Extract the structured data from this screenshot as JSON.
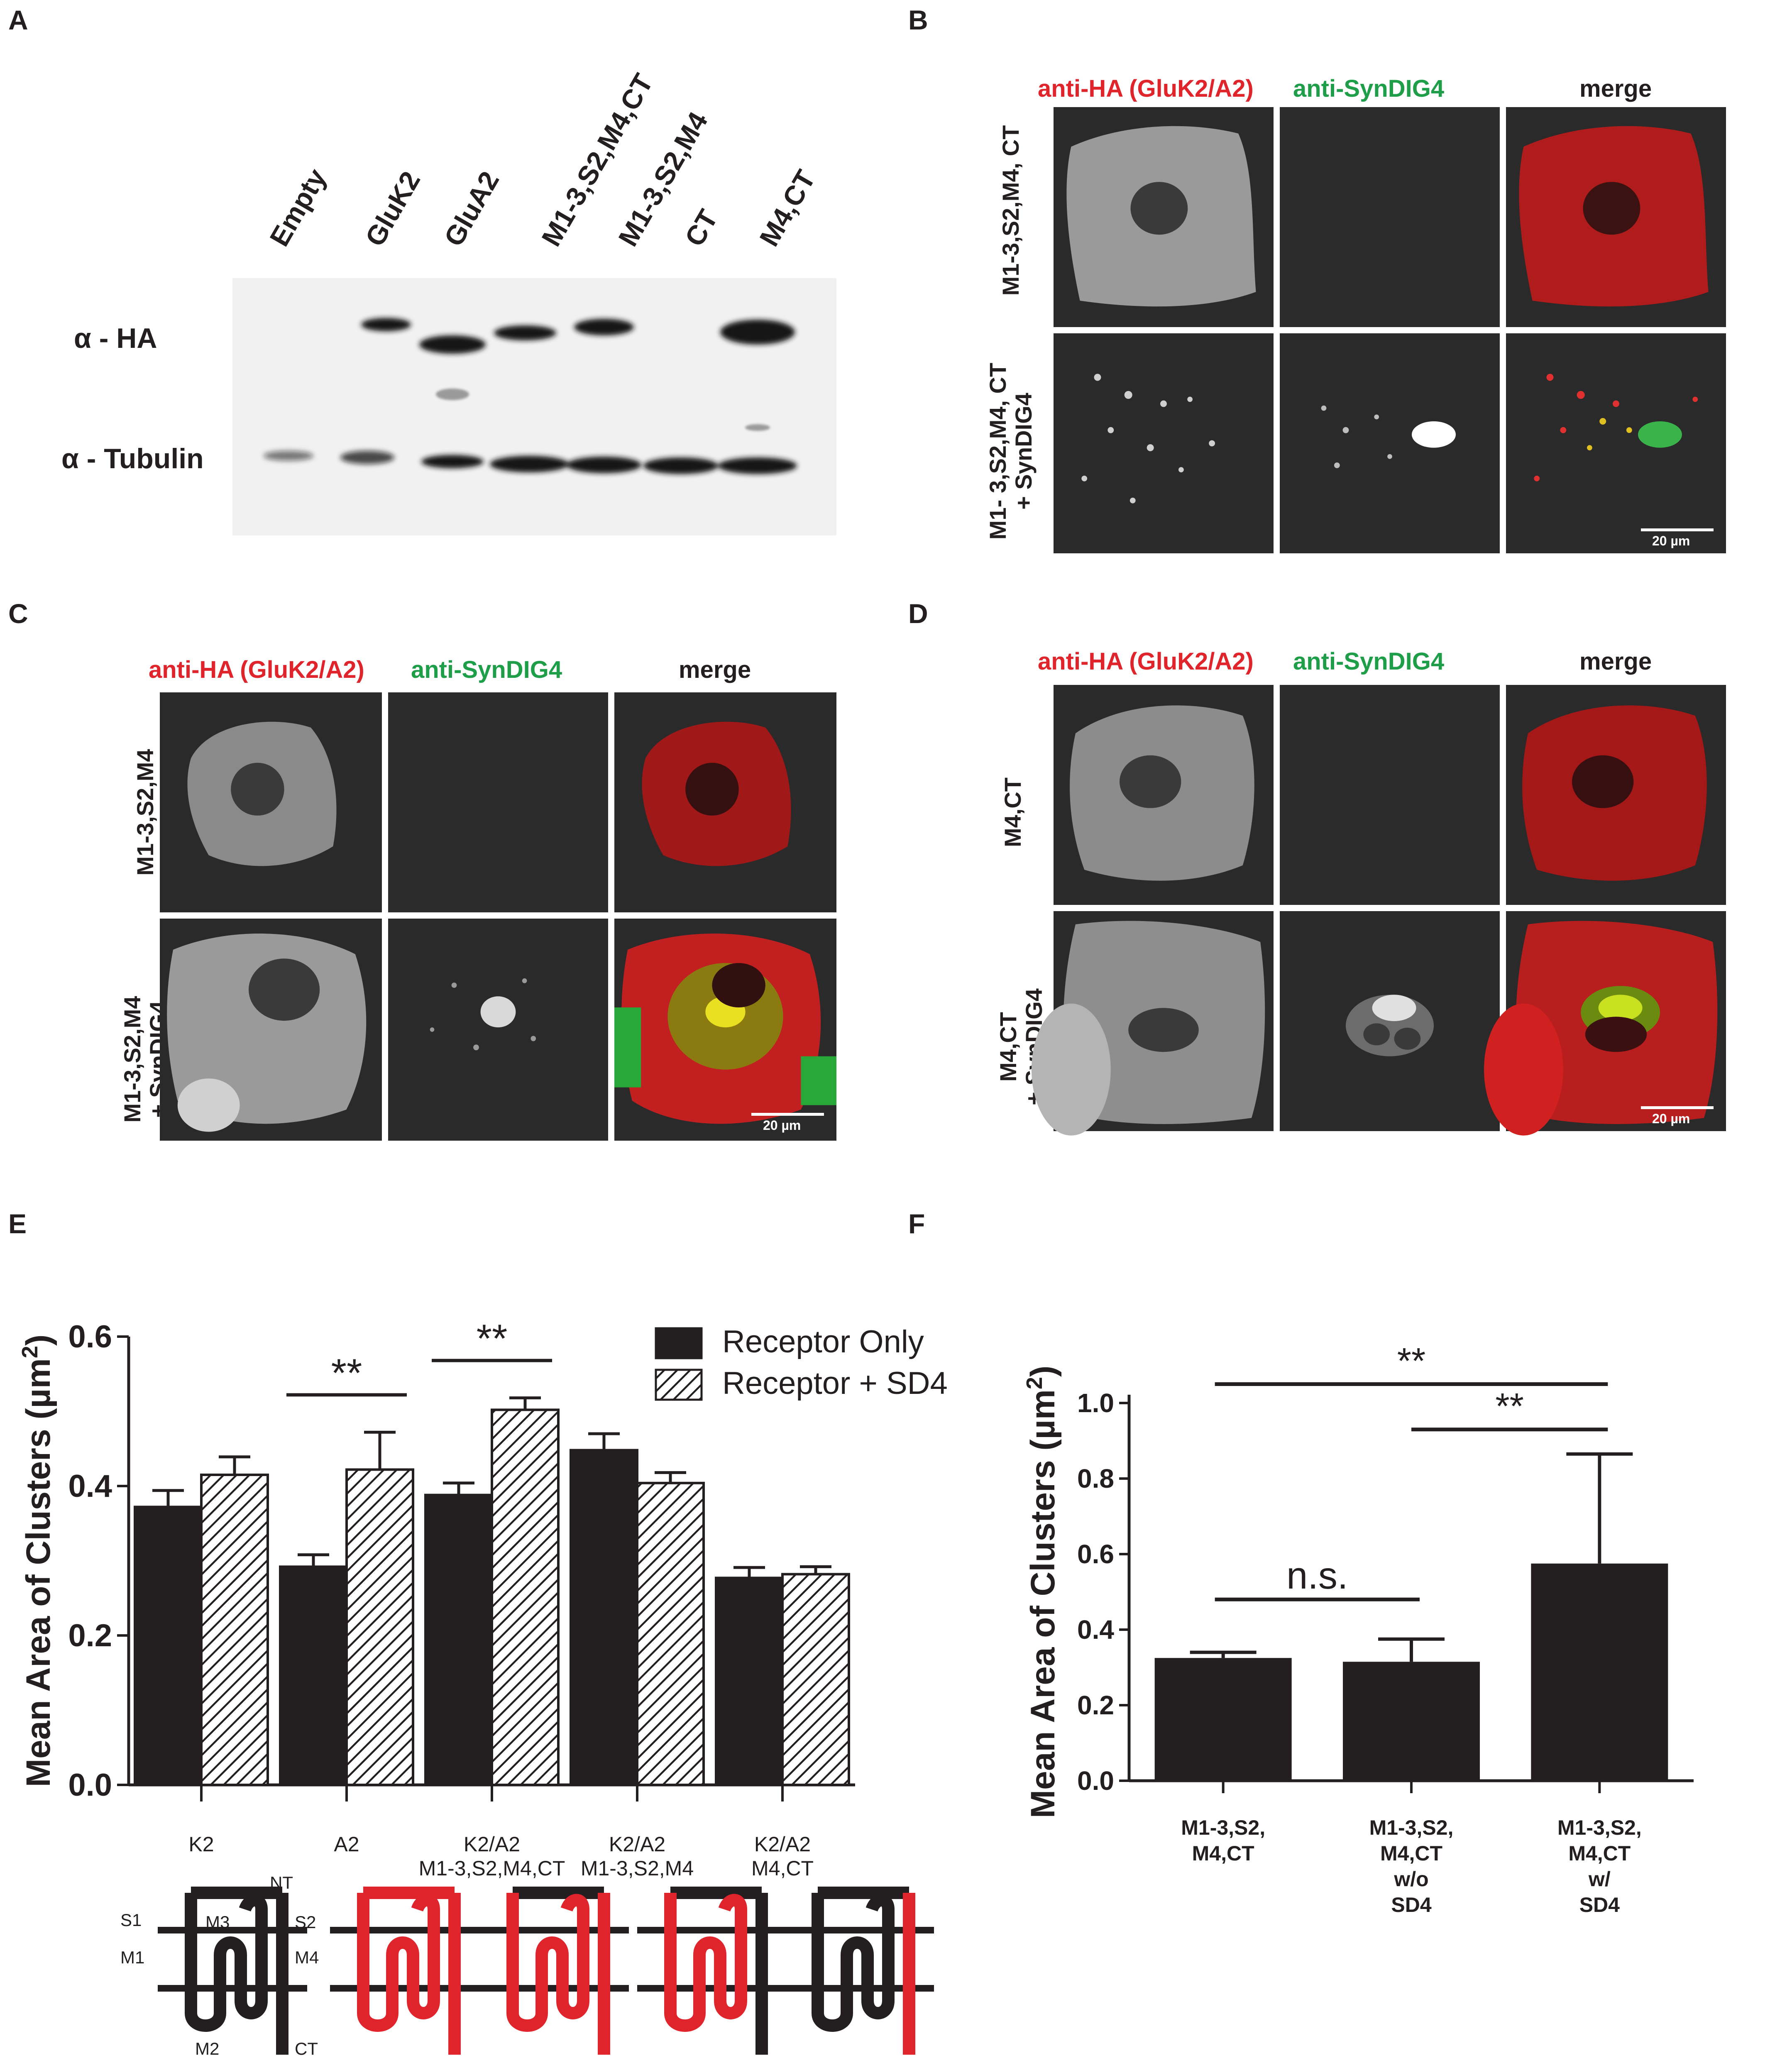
{
  "panels": {
    "a": "A",
    "b": "B",
    "c": "C",
    "d": "D",
    "e": "E",
    "f": "F"
  },
  "blot": {
    "lanes": [
      "Empty",
      "GluK2",
      "GluA2",
      "M1-3,S2,M4,CT",
      "M1-3,S2,M4",
      "CT",
      "M4,CT"
    ],
    "rows": [
      "α - HA",
      "α - Tubulin"
    ]
  },
  "micro_titles": {
    "red": "anti-HA (GluK2/A2)",
    "green": "anti-SynDIG4",
    "merge": "merge"
  },
  "scale_bar": "20 µm",
  "b_rows": [
    "M1-3,S2,M4, CT",
    "M1- 3,S2,M4, CT",
    "+ SynDIG4"
  ],
  "c_rows": [
    "M1-3,S2,M4",
    "M1-3,S2,M4",
    "+ SynDIG4"
  ],
  "d_rows": [
    "M4,CT",
    "M4,CT",
    "+ SynDIG4"
  ],
  "icons": {
    "membrane_labels": {
      "nt": "NT",
      "s1": "S1",
      "m3": "M3",
      "s2": "S2",
      "m1": "M1",
      "m4": "M4",
      "m2": "M2",
      "ct": "CT"
    },
    "colors": {
      "gluk2": "#231f20",
      "glua2": "#e0242b"
    }
  },
  "chart_data": [
    {
      "type": "bar",
      "panel": "E",
      "ylabel": "Mean Area of Clusters (µm2)",
      "ylim": [
        0.0,
        0.6
      ],
      "yticks": [
        "0.0",
        "0.2",
        "0.4",
        "0.6"
      ],
      "categories": [
        "K2",
        "A2",
        "K2/A2 M1-3,S2,M4,CT",
        "K2/A2 M1-3,S2,M4",
        "K2/A2 M4,CT"
      ],
      "category_lines": [
        [
          "K2"
        ],
        [
          "A2"
        ],
        [
          "K2/A2",
          "M1-3,S2,M4,CT"
        ],
        [
          "K2/A2",
          "M1-3,S2,M4"
        ],
        [
          "K2/A2",
          "M4,CT"
        ]
      ],
      "series": [
        {
          "name": "Receptor Only",
          "values": [
            0.372,
            0.292,
            0.388,
            0.448,
            0.277
          ],
          "errors": [
            0.022,
            0.016,
            0.016,
            0.022,
            0.014
          ],
          "fill": "#231f20"
        },
        {
          "name": "Receptor + SD4",
          "values": [
            0.415,
            0.422,
            0.502,
            0.404,
            0.282
          ],
          "errors": [
            0.024,
            0.05,
            0.016,
            0.014,
            0.01
          ],
          "fill": "hatch"
        }
      ],
      "significance": [
        {
          "category": 1,
          "label": "**"
        },
        {
          "category": 2,
          "label": "**"
        }
      ],
      "legend": "top-right"
    },
    {
      "type": "bar",
      "panel": "F",
      "ylabel": "Mean Area of Clusters (µm2)",
      "ylim": [
        0.0,
        1.0
      ],
      "yticks": [
        "0.0",
        "0.2",
        "0.4",
        "0.6",
        "0.8",
        "1.0"
      ],
      "categories": [
        "M1-3,S2, M4,CT",
        "M1-3,S2, M4,CT w/o SD4",
        "M1-3,S2, M4,CT w/ SD4"
      ],
      "category_lines": [
        [
          "M1-3,S2,",
          "M4,CT"
        ],
        [
          "M1-3,S2,",
          "M4,CT",
          "w/o",
          "SD4"
        ],
        [
          "M1-3,S2,",
          "M4,CT",
          "w/",
          "SD4"
        ]
      ],
      "values": [
        0.325,
        0.315,
        0.575
      ],
      "errors": [
        0.015,
        0.06,
        0.29
      ],
      "significance": [
        {
          "from": 0,
          "to": 1,
          "label": "n.s."
        },
        {
          "from": 0,
          "to": 2,
          "label": "**"
        },
        {
          "from": 1,
          "to": 2,
          "label": "**"
        }
      ]
    }
  ]
}
